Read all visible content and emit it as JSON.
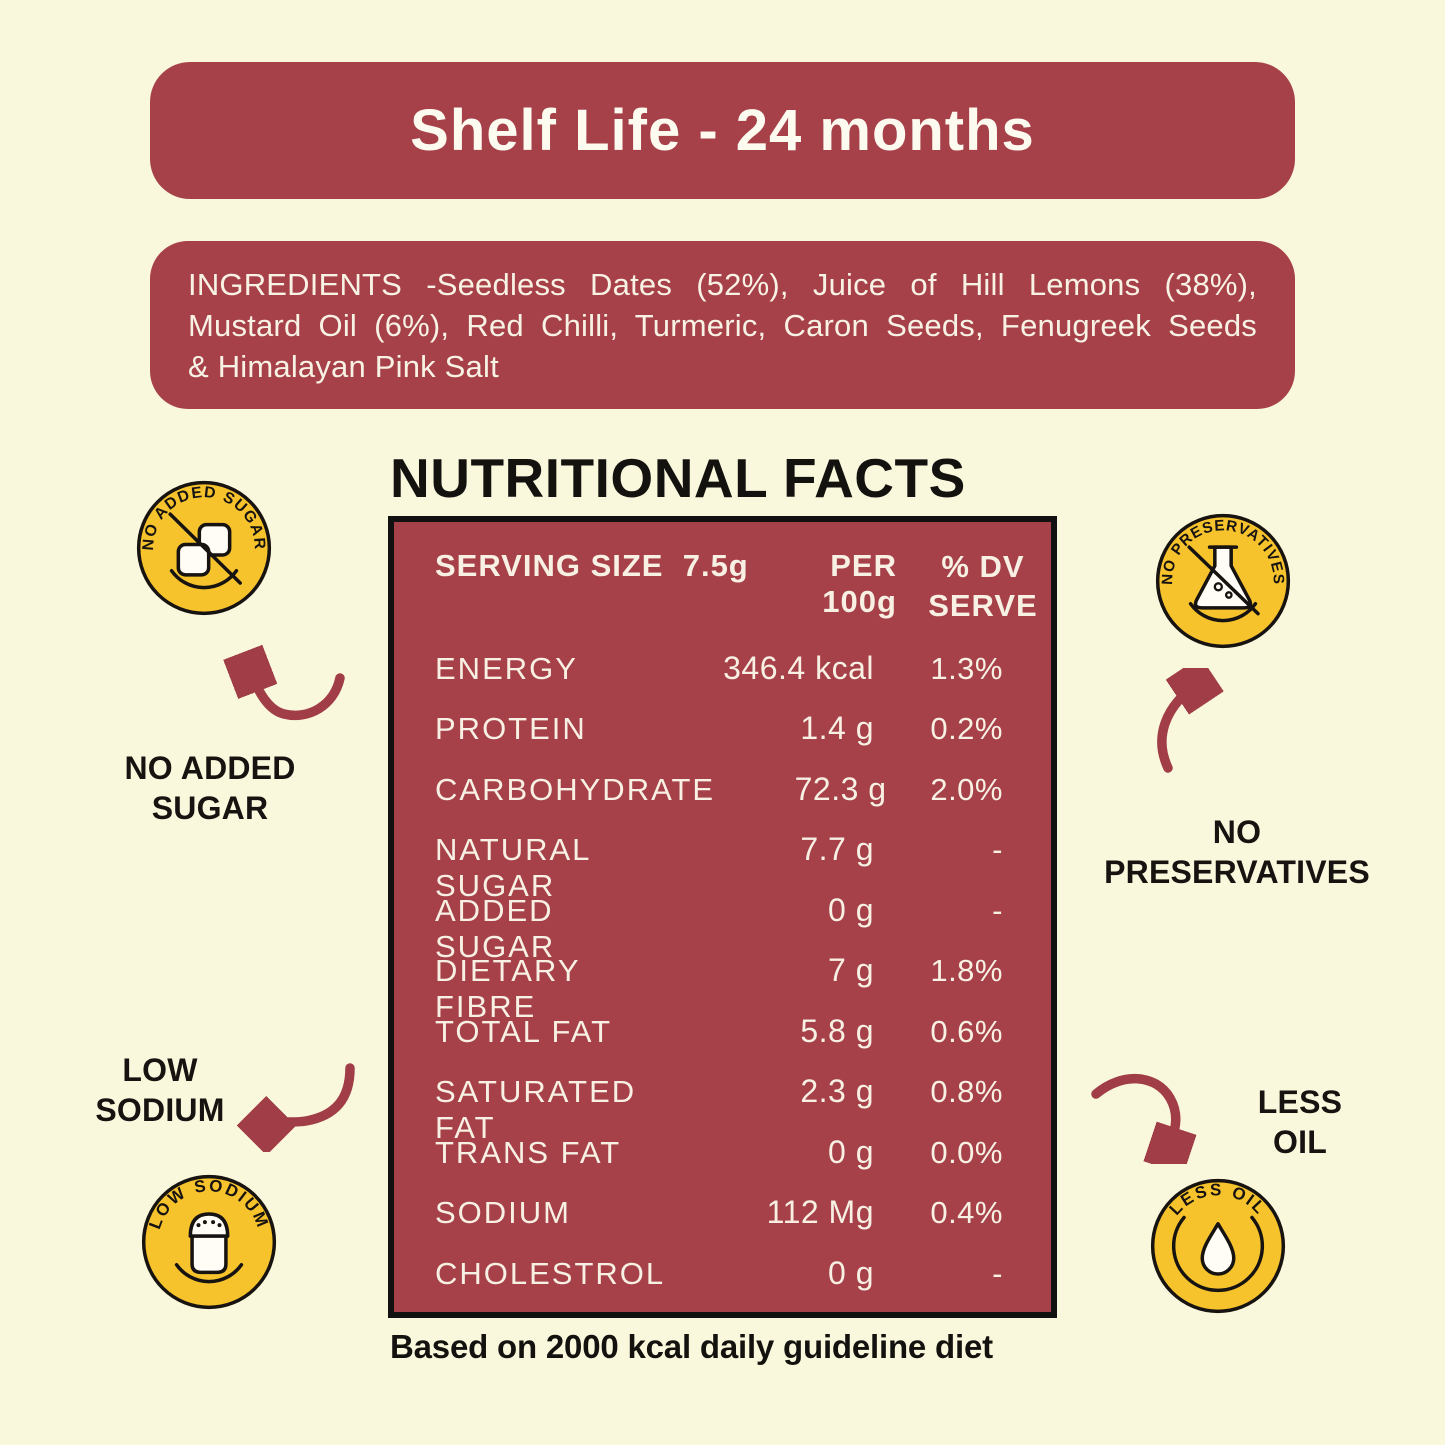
{
  "banner": {
    "text": "Shelf Life - 24 months"
  },
  "ingredients": {
    "lines": [
      "INGREDIENTS -Seedless Dates (52%), Juice of Hill Lemons (38%),",
      "Mustard Oil (6%), Red Chilli, Turmeric, Caron Seeds, Fenugreek Seeds",
      "& Himalayan Pink Salt"
    ]
  },
  "nutrition": {
    "title": "NUTRITIONAL FACTS",
    "header": {
      "col1": "SERVING SIZE  7.5g",
      "col2": "PER 100g",
      "col3_line1": "% DV",
      "col3_line2": "SERVE"
    },
    "rows": [
      {
        "label": "ENERGY",
        "value": "346.4 kcal",
        "dv": "1.3%"
      },
      {
        "label": "PROTEIN",
        "value": "1.4 g",
        "dv": "0.2%"
      },
      {
        "label": "CARBOHYDRATE",
        "value": "72.3 g",
        "dv": "2.0%"
      },
      {
        "label": "NATURAL SUGAR",
        "value": "7.7 g",
        "dv": "-"
      },
      {
        "label": "ADDED SUGAR",
        "value": "0 g",
        "dv": "-"
      },
      {
        "label": "DIETARY FIBRE",
        "value": "7 g",
        "dv": "1.8%"
      },
      {
        "label": "TOTAL FAT",
        "value": "5.8 g",
        "dv": "0.6%"
      },
      {
        "label": "SATURATED FAT",
        "value": "2.3 g",
        "dv": "0.8%"
      },
      {
        "label": "TRANS FAT",
        "value": "0 g",
        "dv": "0.0%"
      },
      {
        "label": "SODIUM",
        "value": "112 Mg",
        "dv": "0.4%"
      },
      {
        "label": "CHOLESTROL",
        "value": "0 g",
        "dv": "-"
      }
    ],
    "footnote": "Based on 2000 kcal daily guideline diet"
  },
  "badges": {
    "no_added_sugar": {
      "ring_text": "NO ADDED SUGAR",
      "label_line1": "NO ADDED",
      "label_line2": "SUGAR",
      "icon": "sugar-cubes-crossed-icon"
    },
    "no_preservatives": {
      "ring_text": "NO PRESERVATIVES",
      "label_line1": "NO",
      "label_line2": "PRESERVATIVES",
      "icon": "flask-crossed-icon"
    },
    "low_sodium": {
      "ring_text": "LOW SODIUM",
      "label_line1": "LOW",
      "label_line2": "SODIUM",
      "icon": "salt-shaker-icon"
    },
    "less_oil": {
      "ring_text": "LESS OIL",
      "label_line1": "LESS",
      "label_line2": "OIL",
      "icon": "oil-drop-icon"
    }
  },
  "colors": {
    "background": "#FAF8DC",
    "maroon": "#A64149",
    "badge_yellow": "#F7C32D",
    "text_dark": "#171310",
    "text_light": "#F7F0E3"
  }
}
